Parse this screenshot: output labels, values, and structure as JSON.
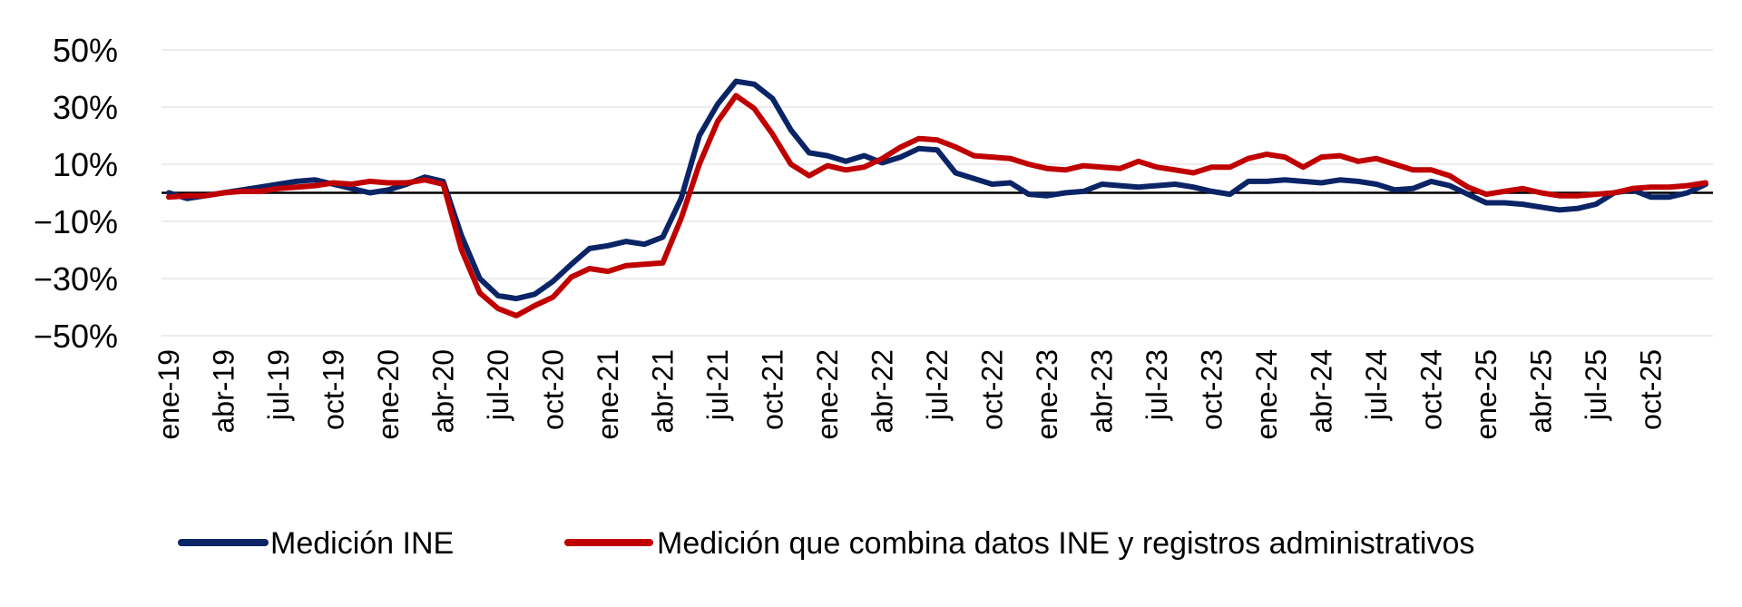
{
  "chart_data": {
    "type": "line",
    "title": "",
    "xlabel": "",
    "ylabel": "",
    "ylim": [
      -50,
      50
    ],
    "yticks": [
      50,
      30,
      10,
      -10,
      -30,
      -50
    ],
    "ytick_labels": [
      "50%",
      "30%",
      "10%",
      "−10%",
      "−30%",
      "−50%"
    ],
    "xtick_labels": [
      "ene-19",
      "abr-19",
      "jul-19",
      "oct-19",
      "ene-20",
      "abr-20",
      "jul-20",
      "oct-20",
      "ene-21",
      "abr-21",
      "jul-21",
      "oct-21",
      "ene-22",
      "abr-22",
      "jul-22",
      "oct-22",
      "ene-23",
      "abr-23",
      "jul-23",
      "oct-23",
      "ene-24",
      "abr-24",
      "jul-24",
      "oct-24",
      "ene-25",
      "abr-25",
      "jul-25",
      "oct-25"
    ],
    "grid": true,
    "legend_position": "bottom",
    "series": [
      {
        "name": "Medición INE",
        "color": "#0b2466",
        "values": [
          0,
          -2,
          -1,
          0,
          1,
          2,
          3,
          4,
          4.5,
          3,
          1.5,
          0,
          1,
          3,
          5.5,
          4,
          -15,
          -30,
          -36,
          -37,
          -35.5,
          -31,
          -25,
          -19.5,
          -18.5,
          -17,
          -18,
          -15.5,
          -2,
          20,
          31,
          39,
          38,
          33,
          22,
          14,
          13,
          11,
          13,
          10.5,
          12.5,
          15.5,
          15,
          7,
          5,
          3,
          3.5,
          -0.5,
          -1,
          0,
          0.5,
          3,
          2.5,
          2,
          2.5,
          3,
          2,
          0.5,
          -0.5,
          4,
          4,
          4.5,
          4,
          3.5,
          4.5,
          4,
          3,
          1,
          1.5,
          4,
          2.5,
          -0.5,
          -3.5,
          -3.5,
          -4,
          -5,
          -6,
          -5.5,
          -4,
          0,
          1,
          -1.5,
          -1.5,
          0,
          3
        ]
      },
      {
        "name": "Medición que combina datos INE y registros administrativos",
        "color": "#c00000",
        "values": [
          -1.5,
          -1,
          -1,
          0,
          0.5,
          0.5,
          1.5,
          2,
          2.5,
          3.5,
          3,
          4,
          3.5,
          3.5,
          4.5,
          3,
          -20,
          -35,
          -40.5,
          -43,
          -39.5,
          -36.5,
          -29.5,
          -26.5,
          -27.5,
          -25.5,
          -25,
          -24.5,
          -9,
          10,
          25,
          34,
          29.5,
          20.5,
          10,
          6,
          9.5,
          8,
          9,
          12,
          16,
          19,
          18.5,
          16,
          13,
          12.5,
          12,
          10,
          8.5,
          8,
          9.5,
          9,
          8.5,
          11,
          9,
          8,
          7,
          9,
          9,
          12,
          13.5,
          12.5,
          9,
          12.5,
          13,
          11,
          12,
          10,
          8,
          8,
          6,
          2,
          -0.5,
          0.5,
          1.5,
          0,
          -1,
          -1,
          -0.5,
          0,
          1.5,
          2,
          2,
          2.5,
          3.5
        ]
      }
    ]
  }
}
